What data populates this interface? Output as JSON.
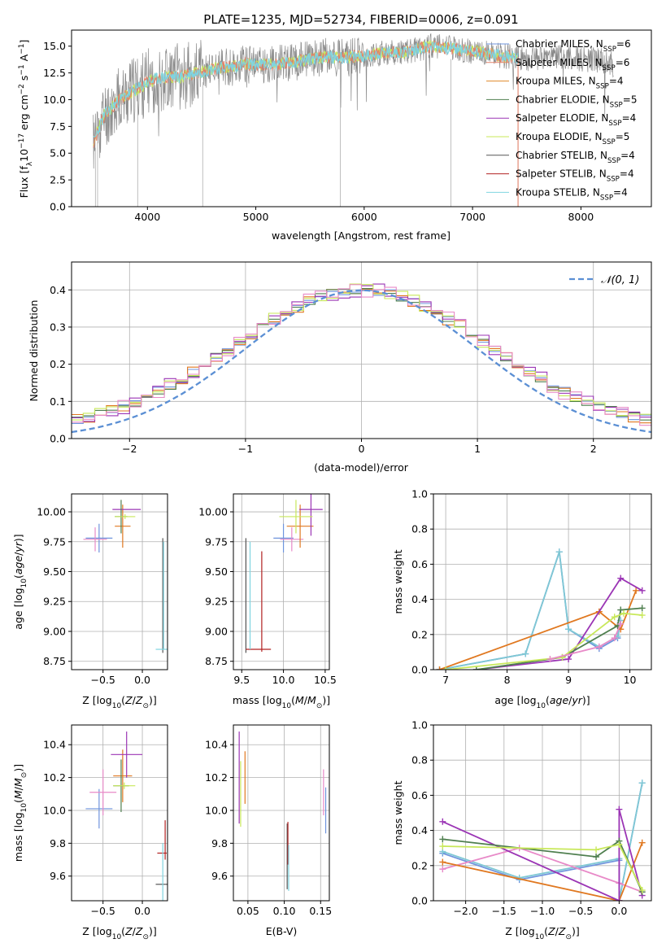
{
  "title": "PLATE=1235, MJD=52734, FIBERID=0006, z=0.091",
  "colors": {
    "Chabrier MILES": "#6f94dd",
    "Salpeter MILES": "#e2826a",
    "Kroupa MILES": "#e08a2a",
    "Chabrier ELODIE": "#4f7f4f",
    "Salpeter ELODIE": "#9b35b5",
    "Kroupa ELODIE": "#c8e85a",
    "Chabrier STELIB": "#555555",
    "Salpeter STELIB": "#b22222",
    "Kroupa STELIB": "#7fd4e0",
    "pink": "#e88ac8",
    "orange_line": "#e07820",
    "cyan_line": "#7fc8d4"
  },
  "chart_data": [
    {
      "type": "line",
      "name": "spectrum",
      "xlabel": "wavelength [Angstrom, rest frame]",
      "ylabel": "Flux [f",
      "ylabel_sub": "λ",
      "ylabel_rest": "10",
      "ylabel_exp": "−17",
      "ylabel_end": " erg cm",
      "ylabel_exp2": "−2",
      "ylabel_end2": " s",
      "ylabel_exp3": "−1",
      "ylabel_end3": " A",
      "ylabel_exp4": "−1",
      "ylabel_close": "]",
      "xlim": [
        3300,
        8650
      ],
      "ylim": [
        0,
        16.5
      ],
      "xticks": [
        "4000",
        "5000",
        "6000",
        "7000",
        "8000"
      ],
      "xtick_values": [
        4000,
        5000,
        6000,
        7000,
        8000
      ],
      "yticks": [
        "0.0",
        "2.5",
        "5.0",
        "7.5",
        "10.0",
        "12.5",
        "15.0"
      ],
      "ytick_values": [
        0,
        2.5,
        5,
        7.5,
        10,
        12.5,
        15
      ],
      "legend": [
        {
          "pre": "Chabrier MILES, N",
          "sub": "SSP",
          "post": "=6"
        },
        {
          "pre": "Salpeter MILES, N",
          "sub": "SSP",
          "post": "=6"
        },
        {
          "pre": "Kroupa MILES, N",
          "sub": "SSP",
          "post": "=4"
        },
        {
          "pre": "Chabrier ELODIE, N",
          "sub": "SSP",
          "post": "=5"
        },
        {
          "pre": "Salpeter ELODIE, N",
          "sub": "SSP",
          "post": "=4"
        },
        {
          "pre": "Kroupa ELODIE, N",
          "sub": "SSP",
          "post": "=5"
        },
        {
          "pre": "Chabrier STELIB, N",
          "sub": "SSP",
          "post": "=4"
        },
        {
          "pre": "Salpeter STELIB, N",
          "sub": "SSP",
          "post": "=4"
        },
        {
          "pre": "Kroupa STELIB, N",
          "sub": "SSP",
          "post": "=4"
        }
      ],
      "legend_placement": "right",
      "continuum": [
        [
          3500,
          6.0
        ],
        [
          3600,
          8.5
        ],
        [
          3700,
          9.6
        ],
        [
          3800,
          10.4
        ],
        [
          3900,
          11.0
        ],
        [
          4000,
          11.6
        ],
        [
          4100,
          12.0
        ],
        [
          4200,
          12.2
        ],
        [
          4300,
          12.1
        ],
        [
          4400,
          12.4
        ],
        [
          4500,
          12.6
        ],
        [
          4600,
          12.9
        ],
        [
          4700,
          13.0
        ],
        [
          4800,
          13.1
        ],
        [
          4900,
          13.3
        ],
        [
          5000,
          13.3
        ],
        [
          5200,
          13.3
        ],
        [
          5400,
          13.6
        ],
        [
          5600,
          14.0
        ],
        [
          5800,
          13.9
        ],
        [
          6000,
          14.1
        ],
        [
          6200,
          14.4
        ],
        [
          6400,
          14.5
        ],
        [
          6600,
          15.0
        ],
        [
          6800,
          14.8
        ],
        [
          7000,
          14.5
        ],
        [
          7200,
          14.2
        ],
        [
          7400,
          13.9
        ],
        [
          7600,
          13.8
        ],
        [
          7800,
          14.0
        ],
        [
          8000,
          13.8
        ],
        [
          8200,
          13.6
        ],
        [
          8300,
          13.3
        ]
      ],
      "observed_end": 8300,
      "observed_start": 3500,
      "model_end": 7420,
      "dips": [
        [
          3520,
          0
        ],
        [
          3540,
          0
        ],
        [
          3910,
          0
        ],
        [
          4510,
          0
        ],
        [
          5780,
          0
        ],
        [
          6800,
          0
        ],
        [
          7420,
          0
        ]
      ],
      "grid": false
    },
    {
      "type": "step",
      "name": "residual-distribution",
      "xlabel": "(data-model)/error",
      "ylabel": "Normed distribution",
      "xlim": [
        -2.5,
        2.5
      ],
      "ylim": [
        0,
        0.475
      ],
      "xticks": [
        "−2",
        "−1",
        "0",
        "1",
        "2"
      ],
      "xtick_values": [
        -2,
        -1,
        0,
        1,
        2
      ],
      "yticks": [
        "0.0",
        "0.1",
        "0.2",
        "0.3",
        "0.4"
      ],
      "ytick_values": [
        0,
        0.1,
        0.2,
        0.3,
        0.4
      ],
      "bin_width": 0.1,
      "bin_start": -2.5,
      "reference_line": {
        "label": "𝒩(0, 1)",
        "color": "#5b8fd4",
        "style": "dashed"
      },
      "series": [
        {
          "name": "Chabrier MILES",
          "color": "#6f94dd",
          "jitter": 0.012,
          "seed": 1
        },
        {
          "name": "Kroupa MILES",
          "color": "#e07820",
          "jitter": 0.016,
          "seed": 2
        },
        {
          "name": "Chabrier ELODIE",
          "color": "#4f7f4f",
          "jitter": 0.012,
          "seed": 3
        },
        {
          "name": "Salpeter ELODIE",
          "color": "#9b35b5",
          "jitter": 0.02,
          "seed": 4
        },
        {
          "name": "Kroupa ELODIE",
          "color": "#c8e85a",
          "jitter": 0.018,
          "seed": 5
        },
        {
          "name": "pink",
          "color": "#e88ac8",
          "jitter": 0.02,
          "seed": 6
        }
      ],
      "grid": true,
      "legend_placement": "top-right"
    },
    {
      "type": "errorbar",
      "name": "age-vs-metallicity",
      "xlabel_pre": "Z [log",
      "xlabel_sub": "10",
      "xlabel_post": "(Z/Z",
      "xlabel_sun": "⊙",
      "xlabel_end": ")]",
      "ylabel_pre": "age  [log",
      "ylabel_sub": "10",
      "ylabel_post": "(age/yr)]",
      "xlim": [
        -0.9,
        0.32
      ],
      "ylim": [
        8.68,
        10.15
      ],
      "xticks": [
        "−0.5",
        "0.0"
      ],
      "xtick_values": [
        -0.5,
        0
      ],
      "yticks": [
        "8.75",
        "9.00",
        "9.25",
        "9.50",
        "9.75",
        "10.00"
      ],
      "ytick_values": [
        8.75,
        9.0,
        9.25,
        9.5,
        9.75,
        10.0
      ],
      "points": [
        {
          "x": -0.55,
          "y": 9.78,
          "xerr": 0.17,
          "yerr": 0.12,
          "color": "#6f94dd"
        },
        {
          "x": -0.6,
          "y": 9.77,
          "xerr": 0.15,
          "yerr": 0.1,
          "color": "#e88ac8"
        },
        {
          "x": -0.25,
          "y": 9.88,
          "xerr": 0.1,
          "yerr": 0.18,
          "color": "#e07820"
        },
        {
          "x": -0.2,
          "y": 10.02,
          "xerr": 0.18,
          "yerr": 0.0,
          "color": "#9b35b5"
        },
        {
          "x": -0.27,
          "y": 9.96,
          "xerr": 0.08,
          "yerr": 0.14,
          "color": "#4f7f4f"
        },
        {
          "x": -0.22,
          "y": 9.96,
          "xerr": 0.13,
          "yerr": 0.02,
          "color": "#c8e85a"
        },
        {
          "x": 0.26,
          "y": 9.3,
          "xerr": 0.0,
          "yerr": 0.48,
          "color": "#555555"
        },
        {
          "x": 0.25,
          "y": 8.85,
          "xerr": 0.08,
          "yerr": 0.0,
          "color": "#7fd4e0"
        },
        {
          "x": 0.27,
          "y": 9.3,
          "xerr": 0.0,
          "yerr": 0.45,
          "color": "#7fd4e0"
        }
      ],
      "grid": true
    },
    {
      "type": "errorbar",
      "name": "age-vs-mass",
      "xlabel_pre": "mass [log",
      "xlabel_sub": "10",
      "xlabel_post": "(M/M",
      "xlabel_sun": "⊙",
      "xlabel_end": ")]",
      "xlim": [
        9.4,
        10.55
      ],
      "ylim": [
        8.68,
        10.15
      ],
      "xticks": [
        "9.5",
        "10.0",
        "10.5"
      ],
      "xtick_values": [
        9.5,
        10.0,
        10.5
      ],
      "yticks": [
        "8.75",
        "9.00",
        "9.25",
        "9.50",
        "9.75",
        "10.00"
      ],
      "ytick_values": [
        8.75,
        9.0,
        9.25,
        9.5,
        9.75,
        10.0
      ],
      "points": [
        {
          "x": 10.0,
          "y": 9.78,
          "xerr": 0.12,
          "yerr": 0.12,
          "color": "#6f94dd"
        },
        {
          "x": 10.1,
          "y": 9.77,
          "xerr": 0.14,
          "yerr": 0.1,
          "color": "#e88ac8"
        },
        {
          "x": 10.2,
          "y": 9.88,
          "xerr": 0.16,
          "yerr": 0.18,
          "color": "#e07820"
        },
        {
          "x": 10.33,
          "y": 10.02,
          "xerr": 0.14,
          "yerr": 0.22,
          "color": "#9b35b5"
        },
        {
          "x": 10.15,
          "y": 9.96,
          "xerr": 0.2,
          "yerr": 0.14,
          "color": "#c8e85a"
        },
        {
          "x": 9.55,
          "y": 9.3,
          "xerr": 0.0,
          "yerr": 0.48,
          "color": "#555555"
        },
        {
          "x": 9.74,
          "y": 9.25,
          "xerr": 0.0,
          "yerr": 0.42,
          "color": "#b22222"
        },
        {
          "x": 9.7,
          "y": 8.85,
          "xerr": 0.15,
          "yerr": 0.0,
          "color": "#b22222"
        },
        {
          "x": 9.6,
          "y": 9.3,
          "xerr": 0.0,
          "yerr": 0.45,
          "color": "#7fd4e0"
        }
      ],
      "grid": true
    },
    {
      "type": "line",
      "name": "mass-weight-vs-age",
      "xlabel_pre": "age  [log",
      "xlabel_sub": "10",
      "xlabel_post": "(age/yr)]",
      "ylabel": "mass weight",
      "xlim": [
        6.8,
        10.35
      ],
      "ylim": [
        0,
        1.0
      ],
      "xticks": [
        "7",
        "8",
        "9",
        "10"
      ],
      "xtick_values": [
        7,
        8,
        9,
        10
      ],
      "yticks": [
        "0.0",
        "0.2",
        "0.4",
        "0.6",
        "0.8",
        "1.0"
      ],
      "ytick_values": [
        0,
        0.2,
        0.4,
        0.6,
        0.8,
        1.0
      ],
      "series": [
        {
          "color": "#6f94dd",
          "x": [
            6.9,
            8.3,
            8.85,
            9.0,
            9.5,
            9.8,
            9.85
          ],
          "y": [
            0.0,
            0.09,
            0.67,
            0.23,
            0.12,
            0.18,
            0.28
          ]
        },
        {
          "color": "#7fc8d4",
          "x": [
            6.9,
            8.3,
            8.85,
            9.0,
            9.5,
            9.8,
            9.85
          ],
          "y": [
            0.0,
            0.09,
            0.67,
            0.23,
            0.13,
            0.19,
            0.28
          ]
        },
        {
          "color": "#e07820",
          "x": [
            6.9,
            9.5,
            9.85,
            10.1
          ],
          "y": [
            0.0,
            0.33,
            0.23,
            0.45
          ]
        },
        {
          "color": "#9b35b5",
          "x": [
            7.5,
            9.0,
            9.85,
            10.2
          ],
          "y": [
            0.0,
            0.06,
            0.52,
            0.45
          ]
        },
        {
          "color": "#4f7f4f",
          "x": [
            7.5,
            8.9,
            9.8,
            9.85,
            10.2
          ],
          "y": [
            0.0,
            0.07,
            0.25,
            0.34,
            0.35
          ]
        },
        {
          "color": "#c8e85a",
          "x": [
            7.0,
            8.9,
            9.75,
            9.9,
            10.2
          ],
          "y": [
            0.0,
            0.07,
            0.3,
            0.32,
            0.31
          ]
        },
        {
          "color": "#e88ac8",
          "x": [
            8.7,
            9.5,
            9.75,
            9.85
          ],
          "y": [
            0.06,
            0.13,
            0.18,
            0.26
          ]
        }
      ],
      "grid": true
    },
    {
      "type": "errorbar",
      "name": "mass-vs-metallicity",
      "xlabel_pre": "Z [log",
      "xlabel_sub": "10",
      "xlabel_post": "(Z/Z",
      "xlabel_sun": "⊙",
      "xlabel_end": ")]",
      "ylabel_pre": "mass [log",
      "ylabel_sub": "10",
      "ylabel_post": "(M/M",
      "ylabel_sun": "⊙",
      "ylabel_end": ")]",
      "xlim": [
        -0.9,
        0.32
      ],
      "ylim": [
        9.45,
        10.52
      ],
      "xticks": [
        "−0.5",
        "0.0"
      ],
      "xtick_values": [
        -0.5,
        0
      ],
      "yticks": [
        "9.6",
        "9.8",
        "10.0",
        "10.2",
        "10.4"
      ],
      "ytick_values": [
        9.6,
        9.8,
        10.0,
        10.2,
        10.4
      ],
      "points": [
        {
          "x": -0.55,
          "y": 10.01,
          "xerr": 0.17,
          "yerr": 0.12,
          "color": "#6f94dd"
        },
        {
          "x": -0.5,
          "y": 10.11,
          "xerr": 0.17,
          "yerr": 0.14,
          "color": "#e88ac8"
        },
        {
          "x": -0.25,
          "y": 10.21,
          "xerr": 0.12,
          "yerr": 0.16,
          "color": "#e07820"
        },
        {
          "x": -0.2,
          "y": 10.34,
          "xerr": 0.2,
          "yerr": 0.14,
          "color": "#9b35b5"
        },
        {
          "x": -0.27,
          "y": 10.15,
          "xerr": 0.1,
          "yerr": 0.16,
          "color": "#4f7f4f"
        },
        {
          "x": -0.23,
          "y": 10.15,
          "xerr": 0.14,
          "yerr": 0.02,
          "color": "#c8e85a"
        },
        {
          "x": 0.25,
          "y": 9.55,
          "xerr": 0.08,
          "yerr": 0.0,
          "color": "#555555"
        },
        {
          "x": 0.25,
          "y": 9.74,
          "xerr": 0.06,
          "yerr": 0.0,
          "color": "#b22222"
        },
        {
          "x": 0.29,
          "y": 9.82,
          "xerr": 0.0,
          "yerr": 0.12,
          "color": "#b22222"
        },
        {
          "x": 0.26,
          "y": 9.6,
          "xerr": 0.0,
          "yerr": 0.2,
          "color": "#7fd4e0"
        }
      ],
      "grid": true
    },
    {
      "type": "errorbar",
      "name": "mass-vs-extinction",
      "xlabel": "E(B-V)",
      "xlim": [
        0.03,
        0.162
      ],
      "ylim": [
        9.45,
        10.52
      ],
      "xticks": [
        "0.05",
        "0.10",
        "0.15"
      ],
      "xtick_values": [
        0.05,
        0.1,
        0.15
      ],
      "yticks": [
        "9.6",
        "9.8",
        "10.0",
        "10.2",
        "10.4"
      ],
      "ytick_values": [
        9.6,
        9.8,
        10.0,
        10.2,
        10.4
      ],
      "points": [
        {
          "x": 0.038,
          "y": 10.2,
          "xerr": 0.0,
          "yerr": 0.28,
          "color": "#9b35b5"
        },
        {
          "x": 0.04,
          "y": 10.1,
          "xerr": 0.0,
          "yerr": 0.2,
          "color": "#c8e85a"
        },
        {
          "x": 0.046,
          "y": 10.2,
          "xerr": 0.0,
          "yerr": 0.16,
          "color": "#e07820"
        },
        {
          "x": 0.104,
          "y": 9.72,
          "xerr": 0.0,
          "yerr": 0.2,
          "color": "#555555"
        },
        {
          "x": 0.105,
          "y": 9.8,
          "xerr": 0.0,
          "yerr": 0.13,
          "color": "#b22222"
        },
        {
          "x": 0.106,
          "y": 9.65,
          "xerr": 0.0,
          "yerr": 0.14,
          "color": "#7fd4e0"
        },
        {
          "x": 0.154,
          "y": 10.11,
          "xerr": 0.0,
          "yerr": 0.14,
          "color": "#e88ac8"
        },
        {
          "x": 0.157,
          "y": 10.0,
          "xerr": 0.0,
          "yerr": 0.14,
          "color": "#6f94dd"
        }
      ],
      "grid": true
    },
    {
      "type": "line",
      "name": "mass-weight-vs-metallicity",
      "xlabel_pre": "Z [log",
      "xlabel_sub": "10",
      "xlabel_post": "(Z/Z",
      "xlabel_sun": "⊙",
      "xlabel_end": ")]",
      "ylabel": "mass weight",
      "xlim": [
        -2.42,
        0.42
      ],
      "ylim": [
        0,
        1.0
      ],
      "xticks": [
        "−2.0",
        "−1.5",
        "−1.0",
        "−0.5",
        "0.0"
      ],
      "xtick_values": [
        -2.0,
        -1.5,
        -1.0,
        -0.5,
        0.0
      ],
      "yticks": [
        "0.0",
        "0.2",
        "0.4",
        "0.6",
        "0.8",
        "1.0"
      ],
      "ytick_values": [
        0,
        0.2,
        0.4,
        0.6,
        0.8,
        1.0
      ],
      "series": [
        {
          "color": "#6f94dd",
          "x": [
            -2.3,
            -1.3,
            0.0,
            0.0,
            0.3
          ],
          "y": [
            0.27,
            0.12,
            0.23,
            0.0,
            0.67
          ]
        },
        {
          "color": "#7fc8d4",
          "x": [
            -2.3,
            -1.3,
            0.0,
            0.0,
            0.3
          ],
          "y": [
            0.28,
            0.13,
            0.24,
            0.0,
            0.67
          ]
        },
        {
          "color": "#e88ac8",
          "x": [
            -2.3,
            -1.3,
            0.0,
            0.3
          ],
          "y": [
            0.18,
            0.3,
            0.1,
            0.05
          ]
        },
        {
          "color": "#e07820",
          "x": [
            -2.3,
            0.0,
            0.3
          ],
          "y": [
            0.22,
            0.0,
            0.33
          ]
        },
        {
          "color": "#9b35b5",
          "x": [
            -2.3,
            0.0,
            0.0,
            0.3
          ],
          "y": [
            0.45,
            0.0,
            0.52,
            0.03
          ]
        },
        {
          "color": "#4f7f4f",
          "x": [
            -2.3,
            -0.3,
            0.0,
            0.3
          ],
          "y": [
            0.35,
            0.25,
            0.34,
            0.05
          ]
        },
        {
          "color": "#c8e85a",
          "x": [
            -2.3,
            -0.3,
            0.0,
            0.3
          ],
          "y": [
            0.31,
            0.29,
            0.32,
            0.06
          ]
        }
      ],
      "grid": true
    }
  ]
}
